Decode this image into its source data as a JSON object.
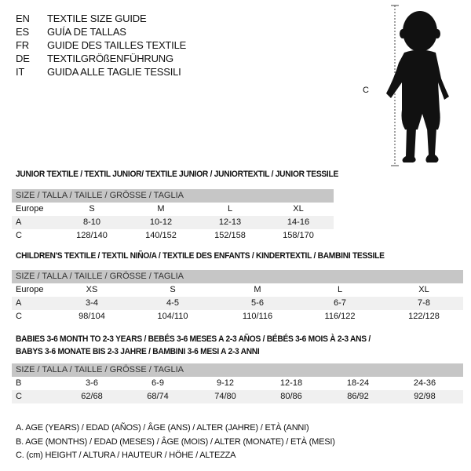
{
  "languages": [
    {
      "code": "EN",
      "title": "TEXTILE SIZE GUIDE"
    },
    {
      "code": "ES",
      "title": "GUÍA DE TALLAS"
    },
    {
      "code": "FR",
      "title": "GUIDE DES TAILLES TEXTILE"
    },
    {
      "code": "DE",
      "title": "TEXTILGRÖßENFÜHRUNG"
    },
    {
      "code": "IT",
      "title": "GUIDA ALLE TAGLIE TESSILI"
    }
  ],
  "figure": {
    "label": "C"
  },
  "size_header": "SIZE / TALLA / TAILLE / GRÖSSE / TAGLIA",
  "junior": {
    "title": "JUNIOR TEXTILE / TEXTIL JUNIOR/ TEXTILE JUNIOR / JUNIORTEXTIL / JUNIOR TESSILE",
    "rows": [
      {
        "label": "Europe",
        "values": [
          "S",
          "M",
          "L",
          "XL"
        ]
      },
      {
        "label": "A",
        "values": [
          "8-10",
          "10-12",
          "12-13",
          "14-16"
        ]
      },
      {
        "label": "C",
        "values": [
          "128/140",
          "140/152",
          "152/158",
          "158/170"
        ]
      }
    ]
  },
  "children": {
    "title": "CHILDREN'S TEXTILE / TEXTIL NIÑO/A / TEXTILE DES ENFANTS / KINDERTEXTIL / BAMBINI TESSILE",
    "rows": [
      {
        "label": "Europe",
        "values": [
          "XS",
          "S",
          "M",
          "L",
          "XL"
        ]
      },
      {
        "label": "A",
        "values": [
          "3-4",
          "4-5",
          "5-6",
          "6-7",
          "7-8"
        ]
      },
      {
        "label": "C",
        "values": [
          "98/104",
          "104/110",
          "110/116",
          "116/122",
          "122/128"
        ]
      }
    ]
  },
  "babies": {
    "title_line1": "BABIES 3-6 MONTH TO 2-3 YEARS / BEBÉS 3-6 MESES A 2-3 AÑOS / BÉBÉS 3-6 MOIS À 2-3 ANS /",
    "title_line2": "BABYS 3-6 MONATE BIS 2-3 JAHRE / BAMBINI 3-6 MESI A 2-3 ANNI",
    "rows": [
      {
        "label": "B",
        "values": [
          "3-6",
          "6-9",
          "9-12",
          "12-18",
          "18-24",
          "24-36"
        ]
      },
      {
        "label": "C",
        "values": [
          "62/68",
          "68/74",
          "74/80",
          "80/86",
          "86/92",
          "92/98"
        ]
      }
    ]
  },
  "legend": [
    "A. AGE (YEARS) / EDAD (AÑOS) / ÂGE (ANS) / ALTER (JAHRE) / ETÀ (ANNI)",
    "B. AGE (MONTHS) / EDAD (MESES) / ÂGE (MOIS) / ALTER (MONATE) / ETÀ (MESI)",
    "C. (cm) HEIGHT / ALTURA / HAUTEUR / HÖHE / ALTEZZA"
  ]
}
